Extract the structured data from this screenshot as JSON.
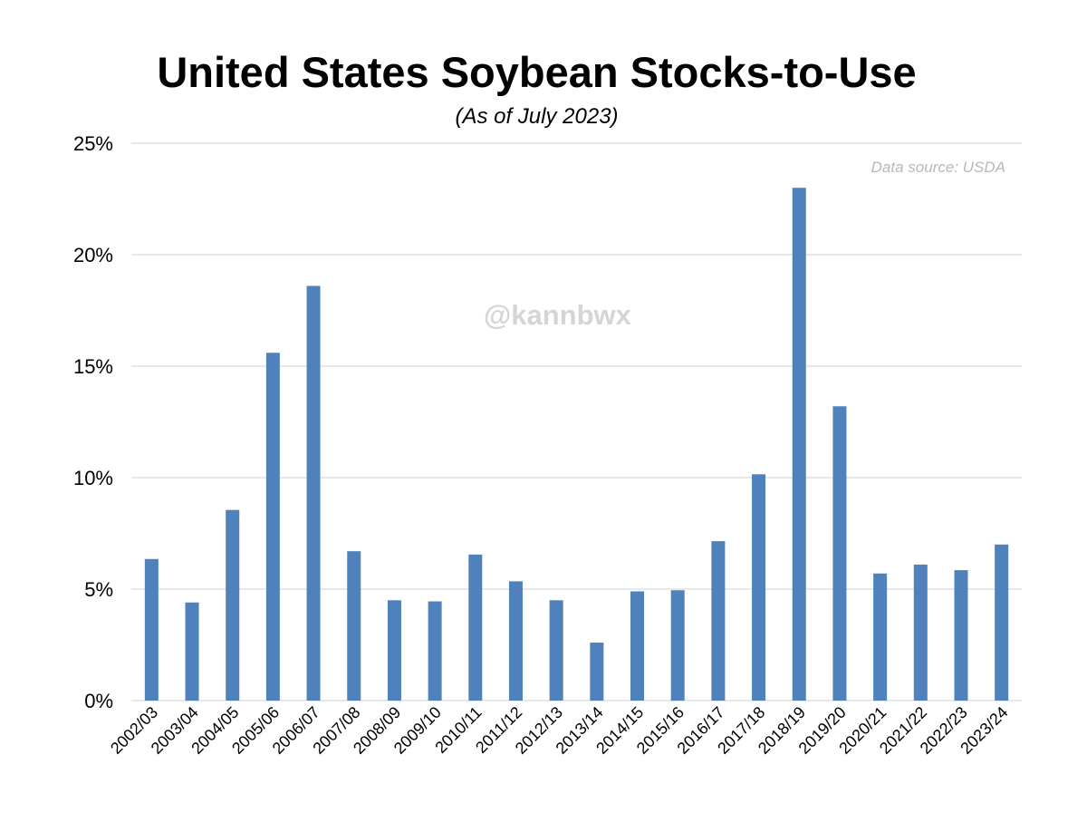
{
  "chart_data": {
    "type": "bar",
    "title": "United States Soybean Stocks-to-Use",
    "subtitle": "(As of July 2023)",
    "source_note": "Data source: USDA",
    "watermark": "@kannbwx",
    "categories": [
      "2002/03",
      "2003/04",
      "2004/05",
      "2005/06",
      "2006/07",
      "2007/08",
      "2008/09",
      "2009/10",
      "2010/11",
      "2011/12",
      "2012/13",
      "2013/14",
      "2014/15",
      "2015/16",
      "2016/17",
      "2017/18",
      "2018/19",
      "2019/20",
      "2020/21",
      "2021/22",
      "2022/23",
      "2023/24"
    ],
    "values": [
      6.35,
      4.4,
      8.55,
      15.6,
      18.6,
      6.7,
      4.5,
      4.45,
      6.55,
      5.35,
      4.5,
      2.6,
      4.9,
      4.95,
      7.15,
      10.15,
      23.0,
      13.2,
      5.7,
      6.1,
      5.85,
      7.0
    ],
    "yticks": [
      "0%",
      "5%",
      "10%",
      "15%",
      "20%",
      "25%"
    ],
    "ylim": [
      0,
      25
    ],
    "grid": true,
    "bar_color": "#4f81bd",
    "grid_color": "#d9d9d9"
  }
}
